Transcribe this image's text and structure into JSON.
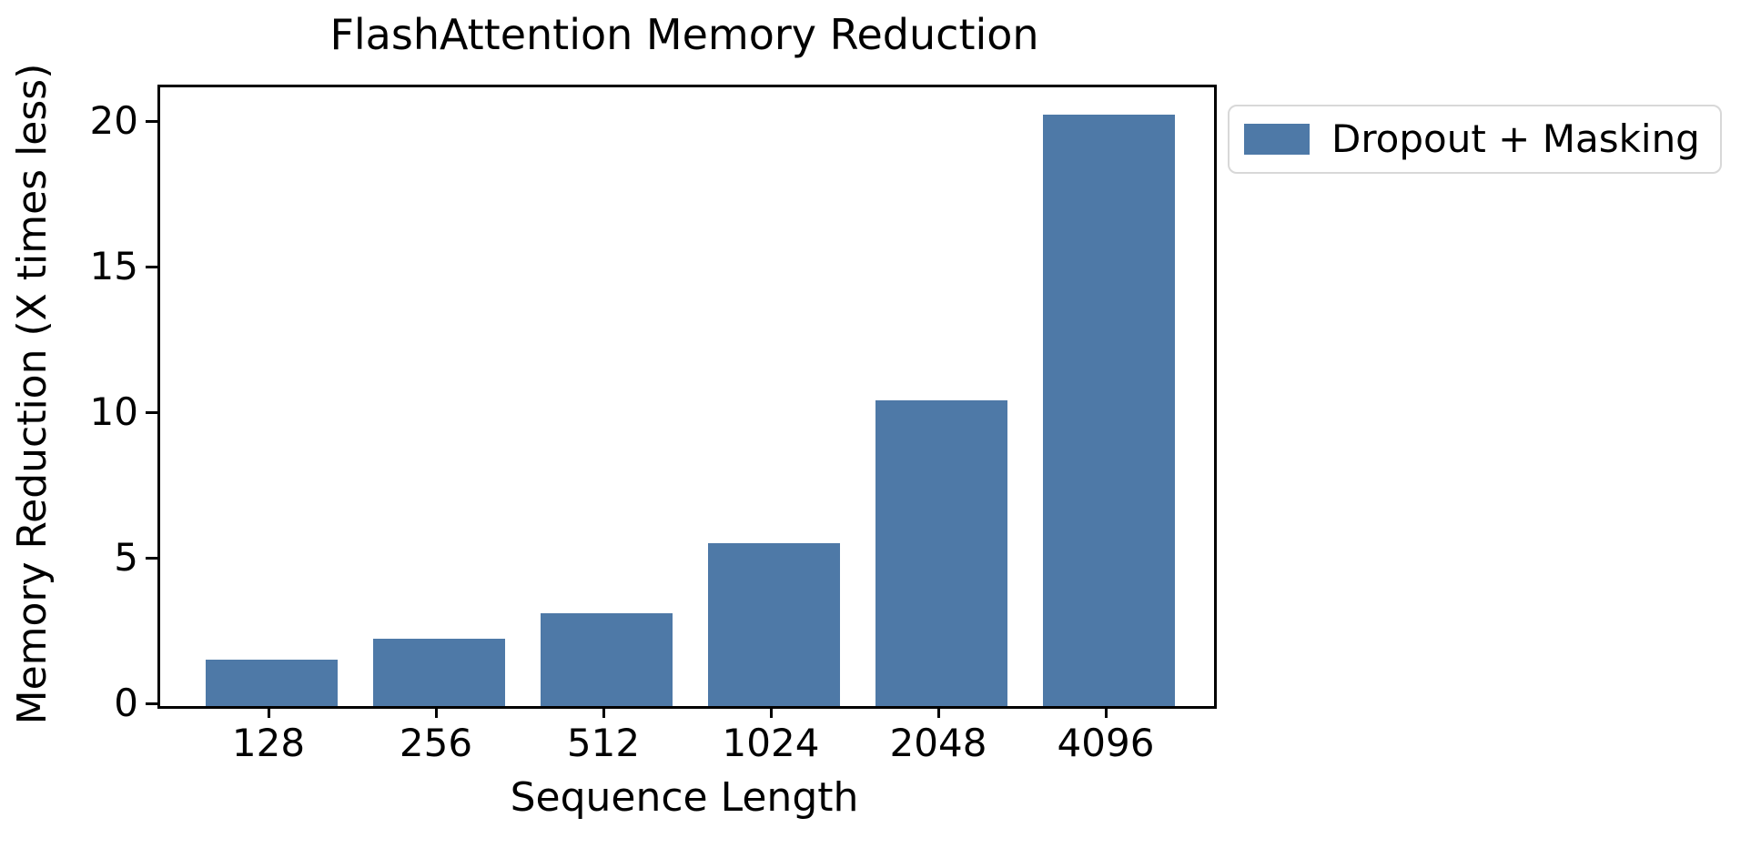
{
  "chart_data": {
    "type": "bar",
    "title": "FlashAttention Memory Reduction",
    "xlabel": "Sequence Length",
    "ylabel": "Memory Reduction (X times less)",
    "categories": [
      "128",
      "256",
      "512",
      "1024",
      "2048",
      "4096"
    ],
    "series": [
      {
        "name": "Dropout + Masking",
        "values": [
          1.6,
          2.3,
          3.2,
          5.6,
          10.5,
          20.3
        ]
      }
    ],
    "yticks": [
      0,
      5,
      10,
      15,
      20
    ],
    "ylim": [
      0,
      21.25
    ],
    "bar_color": "#4E79A7",
    "axis_color": "#000000",
    "legend_border_color": "#d8d8d8",
    "legend_position": "upper-right-outside",
    "grid": false,
    "background_color": "#ffffff"
  }
}
